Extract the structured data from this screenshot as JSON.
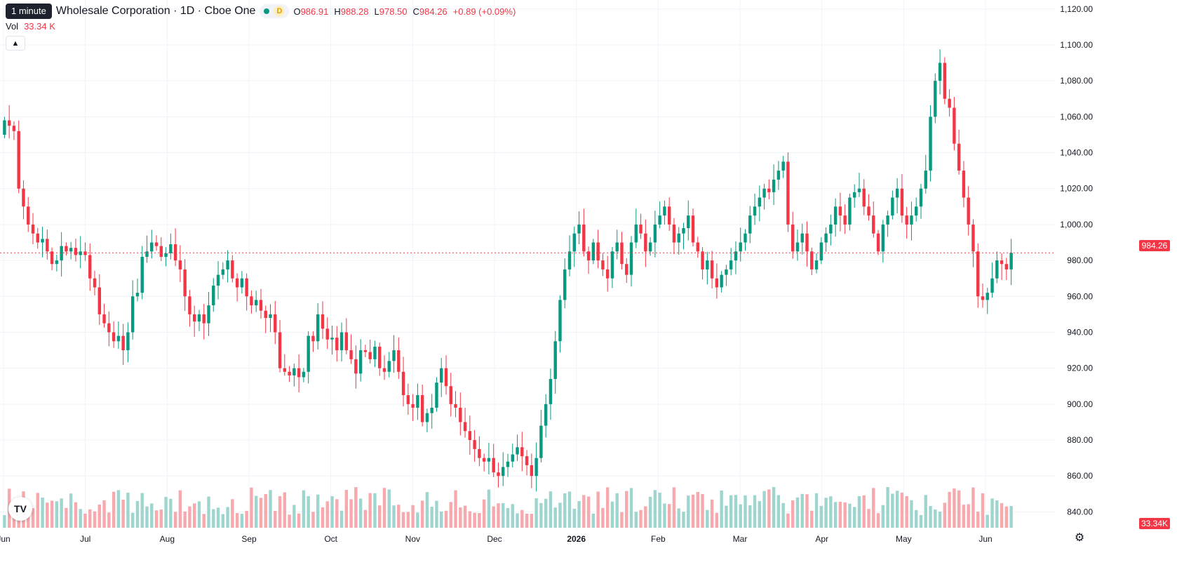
{
  "header": {
    "interval_chip": "1 minute",
    "symbol_title": "Wholesale Corporation · 1D · Cboe One",
    "d_badge": "D",
    "ohlc": {
      "o_key": "O",
      "o_val": "986.91",
      "h_key": "H",
      "h_val": "988.28",
      "l_key": "L",
      "l_val": "978.50",
      "c_key": "C",
      "c_val": "984.26",
      "change": "+0.89 (+0.09%)"
    },
    "vol_label": "Vol",
    "vol_value": "33.34 K",
    "collapse_icon": "chevron-up-icon"
  },
  "price_axis": {
    "ticks": [
      "1,120.00",
      "1,100.00",
      "1,080.00",
      "1,060.00",
      "1,040.00",
      "1,020.00",
      "1,000.00",
      "980.00",
      "960.00",
      "940.00",
      "920.00",
      "900.00",
      "880.00",
      "860.00",
      "840.00"
    ],
    "last_price_label": "984.26",
    "last_volume_label": "33.34K"
  },
  "time_axis": {
    "labels": [
      "Jun",
      "Jul",
      "Aug",
      "Sep",
      "Oct",
      "Nov",
      "Dec",
      "2026",
      "Feb",
      "Mar",
      "Apr",
      "May",
      "Jun"
    ]
  },
  "colors": {
    "up": "#089981",
    "down": "#f23645",
    "vol_up": "#9ed6cf",
    "vol_down": "#f7a9ae"
  },
  "logo_icon": "tradingview-logo-icon",
  "settings_icon": "settings-gear-icon",
  "chart_data": {
    "type": "candlestick",
    "ylim": [
      830,
      1125
    ],
    "x_labels": [
      "Jun",
      "Jul",
      "Aug",
      "Sep",
      "Oct",
      "Nov",
      "Dec",
      "2026",
      "Feb",
      "Mar",
      "Apr",
      "May",
      "Jun"
    ],
    "last_close": 984.26,
    "grid": true,
    "closes": [
      1058,
      1055,
      1052,
      1020,
      1010,
      1000,
      995,
      990,
      992,
      985,
      978,
      980,
      988,
      985,
      987,
      983,
      985,
      983,
      970,
      965,
      950,
      945,
      940,
      935,
      938,
      930,
      940,
      960,
      962,
      982,
      985,
      990,
      988,
      982,
      984,
      989,
      980,
      975,
      960,
      950,
      946,
      950,
      945,
      955,
      966,
      972,
      975,
      980,
      970,
      965,
      970,
      960,
      955,
      958,
      952,
      948,
      950,
      940,
      920,
      918,
      916,
      920,
      915,
      918,
      938,
      935,
      950,
      942,
      936,
      937,
      930,
      940,
      930,
      925,
      917,
      930,
      929,
      925,
      932,
      920,
      918,
      924,
      930,
      918,
      905,
      900,
      898,
      905,
      890,
      895,
      898,
      912,
      920,
      910,
      900,
      898,
      890,
      885,
      880,
      875,
      870,
      868,
      870,
      862,
      860,
      865,
      868,
      872,
      876,
      871,
      866,
      860,
      870,
      888,
      900,
      914,
      935,
      958,
      975,
      985,
      995,
      1000,
      985,
      980,
      990,
      980,
      975,
      970,
      985,
      990,
      978,
      972,
      990,
      1000,
      995,
      985,
      990,
      1000,
      1005,
      1010,
      1000,
      990,
      995,
      998,
      1005,
      990,
      985,
      975,
      980,
      970,
      965,
      972,
      975,
      980,
      985,
      990,
      995,
      1005,
      1010,
      1015,
      1020,
      1018,
      1025,
      1030,
      1035,
      1000,
      985,
      990,
      995,
      985,
      975,
      980,
      990,
      995,
      1000,
      1010,
      1005,
      1000,
      1015,
      1018,
      1020,
      1010,
      1005,
      995,
      985,
      1000,
      1005,
      1015,
      1020,
      1005,
      1000,
      1005,
      1010,
      1020,
      1030,
      1060,
      1080,
      1090,
      1070,
      1065,
      1045,
      1030,
      1015,
      1000,
      985,
      960,
      958,
      962,
      970,
      980,
      978,
      975,
      984.26
    ]
  }
}
